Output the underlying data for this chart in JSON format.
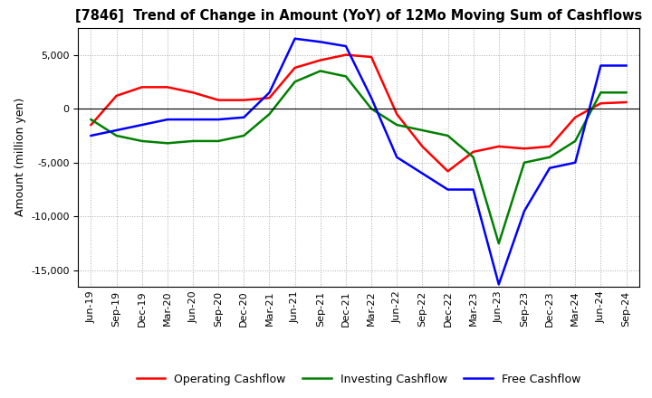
{
  "title": "[7846]  Trend of Change in Amount (YoY) of 12Mo Moving Sum of Cashflows",
  "ylabel": "Amount (million yen)",
  "ylim": [
    -16500,
    7500
  ],
  "yticks": [
    -15000,
    -10000,
    -5000,
    0,
    5000
  ],
  "background_color": "#ffffff",
  "grid_color": "#aaaaaa",
  "x_labels": [
    "Jun-19",
    "Sep-19",
    "Dec-19",
    "Mar-20",
    "Jun-20",
    "Sep-20",
    "Dec-20",
    "Mar-21",
    "Jun-21",
    "Sep-21",
    "Dec-21",
    "Mar-22",
    "Jun-22",
    "Sep-22",
    "Dec-22",
    "Mar-23",
    "Jun-23",
    "Sep-23",
    "Dec-23",
    "Mar-24",
    "Jun-24",
    "Sep-24"
  ],
  "operating_cashflow": [
    -1500,
    1200,
    2000,
    2000,
    1500,
    800,
    800,
    1000,
    3800,
    4500,
    5000,
    4800,
    -500,
    -3500,
    -5800,
    -4000,
    -3500,
    -3700,
    -3500,
    -800,
    500,
    600
  ],
  "investing_cashflow": [
    -1000,
    -2500,
    -3000,
    -3200,
    -3000,
    -3000,
    -2500,
    -500,
    2500,
    3500,
    3000,
    0,
    -1500,
    -2000,
    -2500,
    -4500,
    -12500,
    -5000,
    -4500,
    -3000,
    1500,
    1500
  ],
  "free_cashflow": [
    -2500,
    -2000,
    -1500,
    -1000,
    -1000,
    -1000,
    -800,
    1500,
    6500,
    6200,
    5800,
    1000,
    -4500,
    -6000,
    -7500,
    -7500,
    -16300,
    -9500,
    -5500,
    -5000,
    4000,
    4000
  ],
  "op_color": "#ff0000",
  "inv_color": "#008000",
  "free_color": "#0000ff",
  "line_width": 1.8
}
